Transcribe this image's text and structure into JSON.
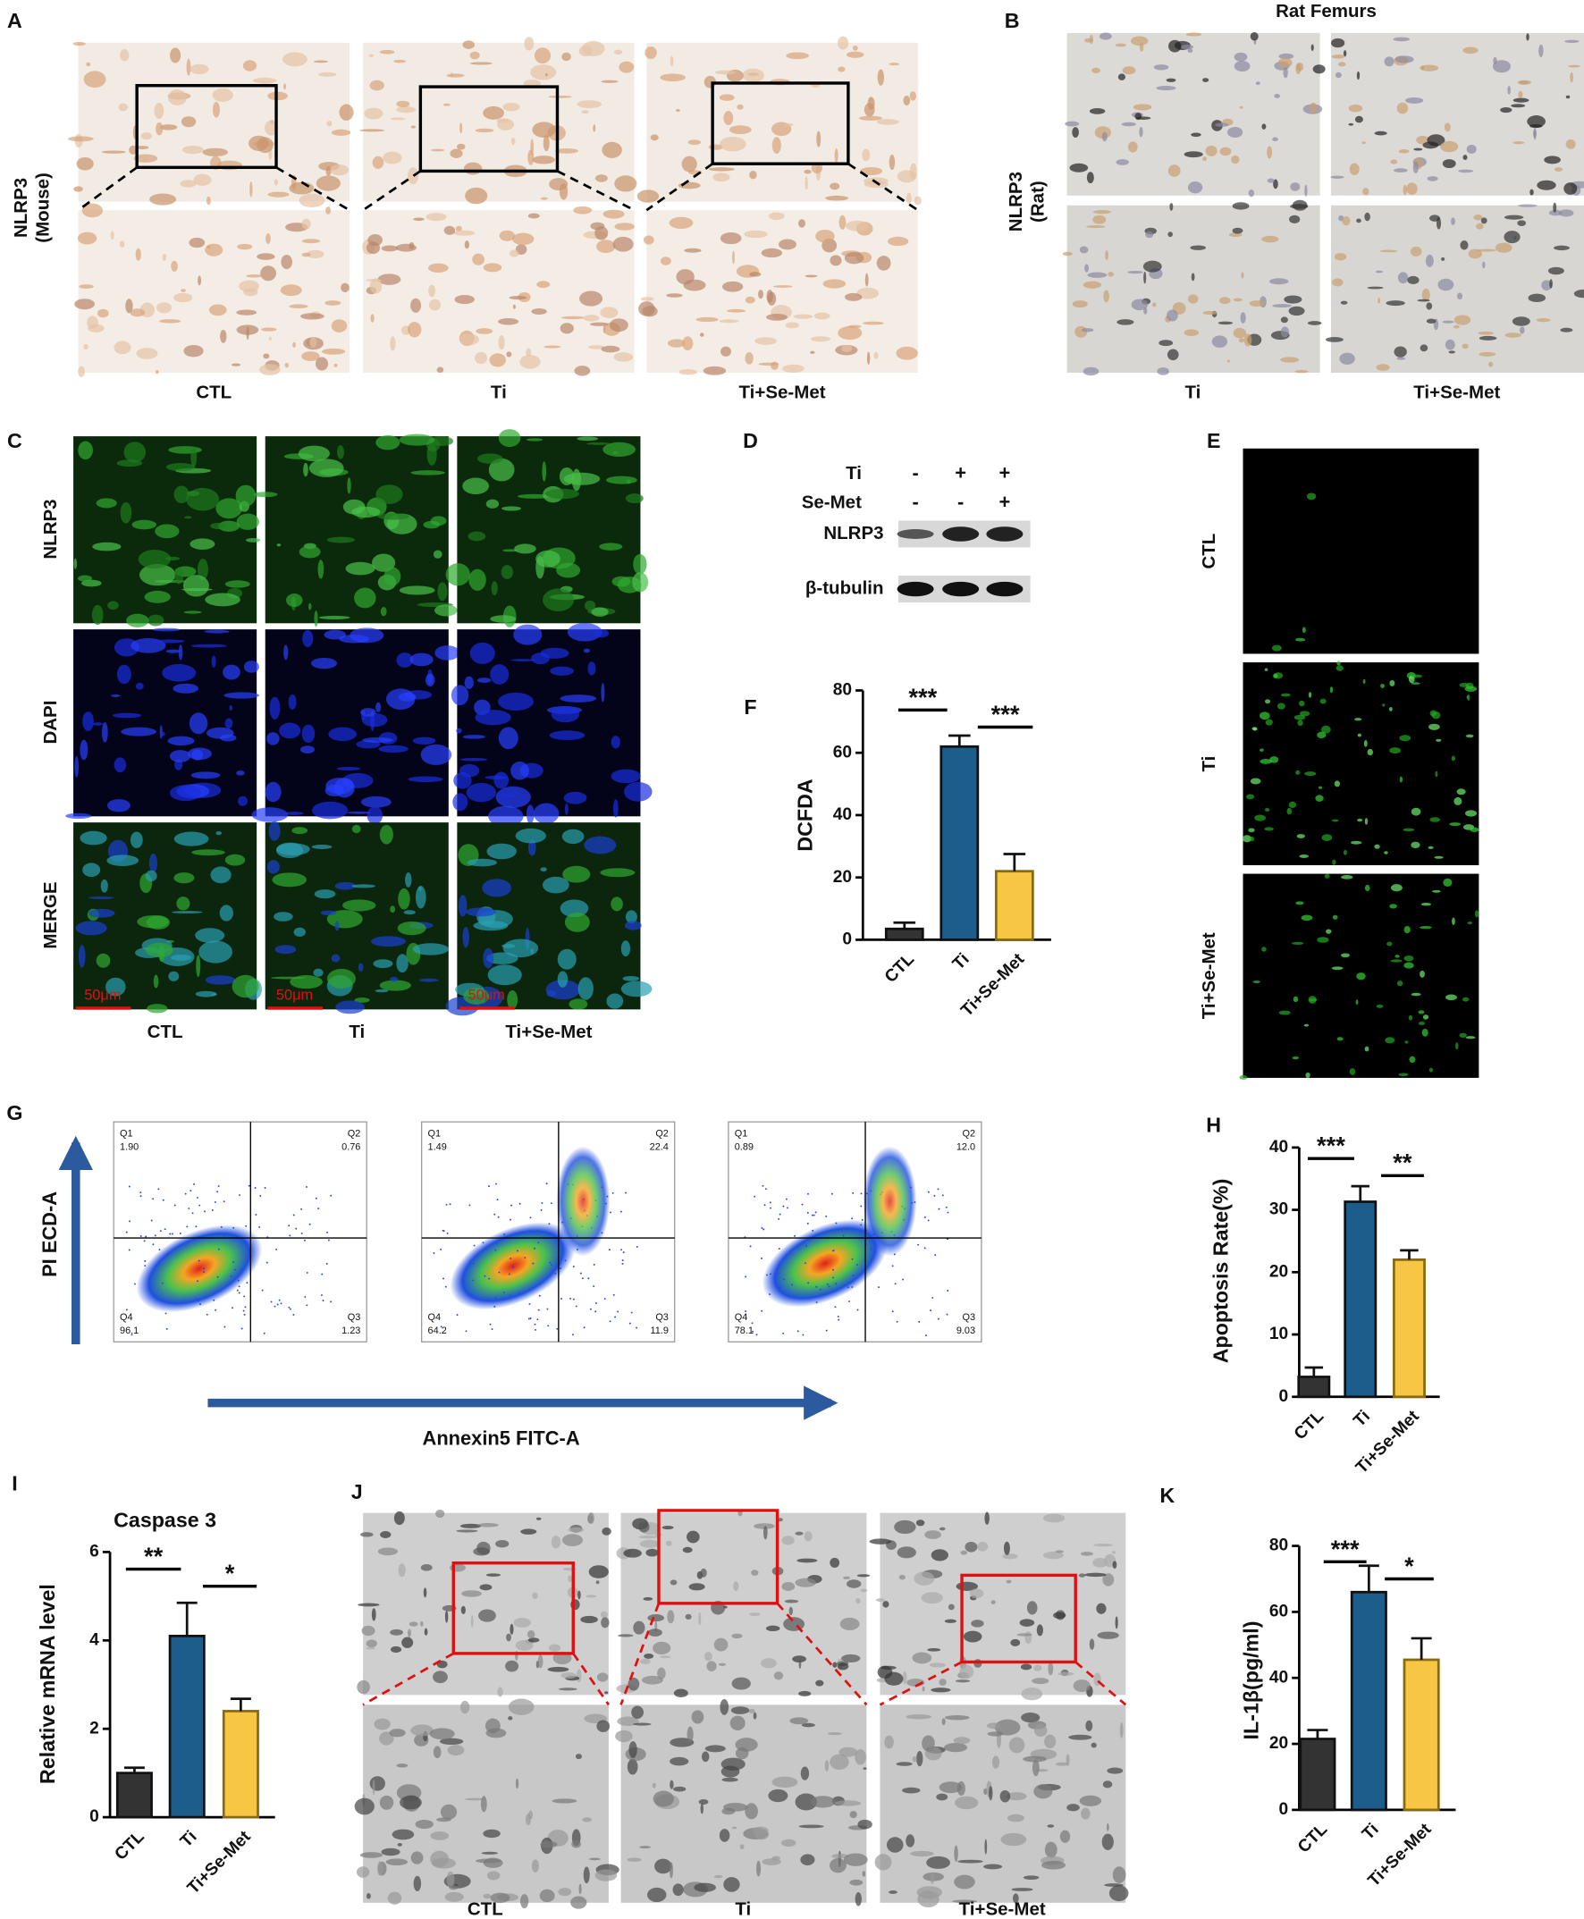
{
  "panel_labels": [
    "A",
    "B",
    "C",
    "D",
    "E",
    "F",
    "G",
    "H",
    "I",
    "J",
    "K"
  ],
  "panel_a": {
    "row_label": [
      "NLRP3",
      "(Mouse)"
    ],
    "columns": [
      "CTL",
      "Ti",
      "Ti+Se-Met"
    ]
  },
  "panel_b": {
    "title": "Rat Femurs",
    "row_label": [
      "NLRP3",
      "(Rat)"
    ],
    "columns": [
      "Ti",
      "Ti+Se-Met"
    ]
  },
  "panel_c": {
    "rows": [
      "NLRP3",
      "DAPI",
      "MERGE"
    ],
    "columns": [
      "CTL",
      "Ti",
      "Ti+Se-Met"
    ],
    "scale_bar": "50μm"
  },
  "panel_d": {
    "rows": [
      {
        "label": "Ti",
        "signs": [
          "-",
          "+",
          "+"
        ]
      },
      {
        "label": "Se-Met",
        "signs": [
          "-",
          "-",
          "+"
        ]
      }
    ],
    "bands": [
      "NLRP3",
      "β-tubulin"
    ]
  },
  "panel_e": {
    "rows": [
      "CTL",
      "Ti",
      "Ti+Se-Met"
    ]
  },
  "panel_g": {
    "y_label": "PI ECD-A",
    "x_label": "Annexin5 FITC-A",
    "plots": [
      {
        "quadrants": [
          {
            "name": "Q1",
            "value": "1.90"
          },
          {
            "name": "Q2",
            "value": "0.76"
          },
          {
            "name": "Q3",
            "value": "1.23"
          },
          {
            "name": "Q4",
            "value": "96.1"
          }
        ]
      },
      {
        "quadrants": [
          {
            "name": "Q1",
            "value": "1.49"
          },
          {
            "name": "Q2",
            "value": "22.4"
          },
          {
            "name": "Q3",
            "value": "11.9"
          },
          {
            "name": "Q4",
            "value": "64.2"
          }
        ]
      },
      {
        "quadrants": [
          {
            "name": "Q1",
            "value": "0.89"
          },
          {
            "name": "Q2",
            "value": "12.0"
          },
          {
            "name": "Q3",
            "value": "9.03"
          },
          {
            "name": "Q4",
            "value": "78.1"
          }
        ]
      }
    ]
  },
  "panel_j": {
    "columns": [
      "CTL",
      "Ti",
      "Ti+Se-Met"
    ]
  },
  "chart_data": [
    {
      "type": "bar",
      "y_label": "DCFDA",
      "categories": [
        "CTL",
        "Ti",
        "Ti+Se-Met"
      ],
      "values": [
        3.5,
        62,
        22
      ],
      "errors": [
        2,
        3.5,
        5.5
      ],
      "colors": [
        "#333333",
        "#1d5d8c",
        "#f6c644"
      ],
      "ylim": [
        0,
        80
      ],
      "yticks": [
        0,
        20,
        40,
        60,
        80
      ],
      "significance": [
        "***",
        "***"
      ]
    },
    {
      "type": "bar",
      "y_label": "Apoptosis Rate(%)",
      "categories": [
        "CTL",
        "Ti",
        "Ti+Se-Met"
      ],
      "values": [
        3.2,
        31.3,
        22
      ],
      "errors": [
        1.5,
        2.5,
        1.5
      ],
      "colors": [
        "#333333",
        "#1d5d8c",
        "#f6c644"
      ],
      "ylim": [
        0,
        40
      ],
      "yticks": [
        0,
        10,
        20,
        30,
        40
      ],
      "significance": [
        "***",
        "**"
      ]
    },
    {
      "type": "bar",
      "title": "Caspase 3",
      "y_label": "Relative mRNA level",
      "categories": [
        "CTL",
        "Ti",
        "Ti+Se-Met"
      ],
      "values": [
        1.0,
        4.1,
        2.4
      ],
      "errors": [
        0.12,
        0.75,
        0.28
      ],
      "colors": [
        "#333333",
        "#1d5d8c",
        "#f6c644"
      ],
      "ylim": [
        0,
        6
      ],
      "yticks": [
        0,
        2,
        4,
        6
      ],
      "significance": [
        "**",
        "*"
      ]
    },
    {
      "type": "bar",
      "y_label": "IL-1β(pg/ml)",
      "categories": [
        "CTL",
        "Ti",
        "Ti+Se-Met"
      ],
      "values": [
        21.5,
        66,
        45.5
      ],
      "errors": [
        2.7,
        8,
        6.5
      ],
      "colors": [
        "#333333",
        "#1d5d8c",
        "#f6c644"
      ],
      "ylim": [
        0,
        80
      ],
      "yticks": [
        0,
        20,
        40,
        60,
        80
      ],
      "significance": [
        "***",
        "*"
      ]
    }
  ]
}
